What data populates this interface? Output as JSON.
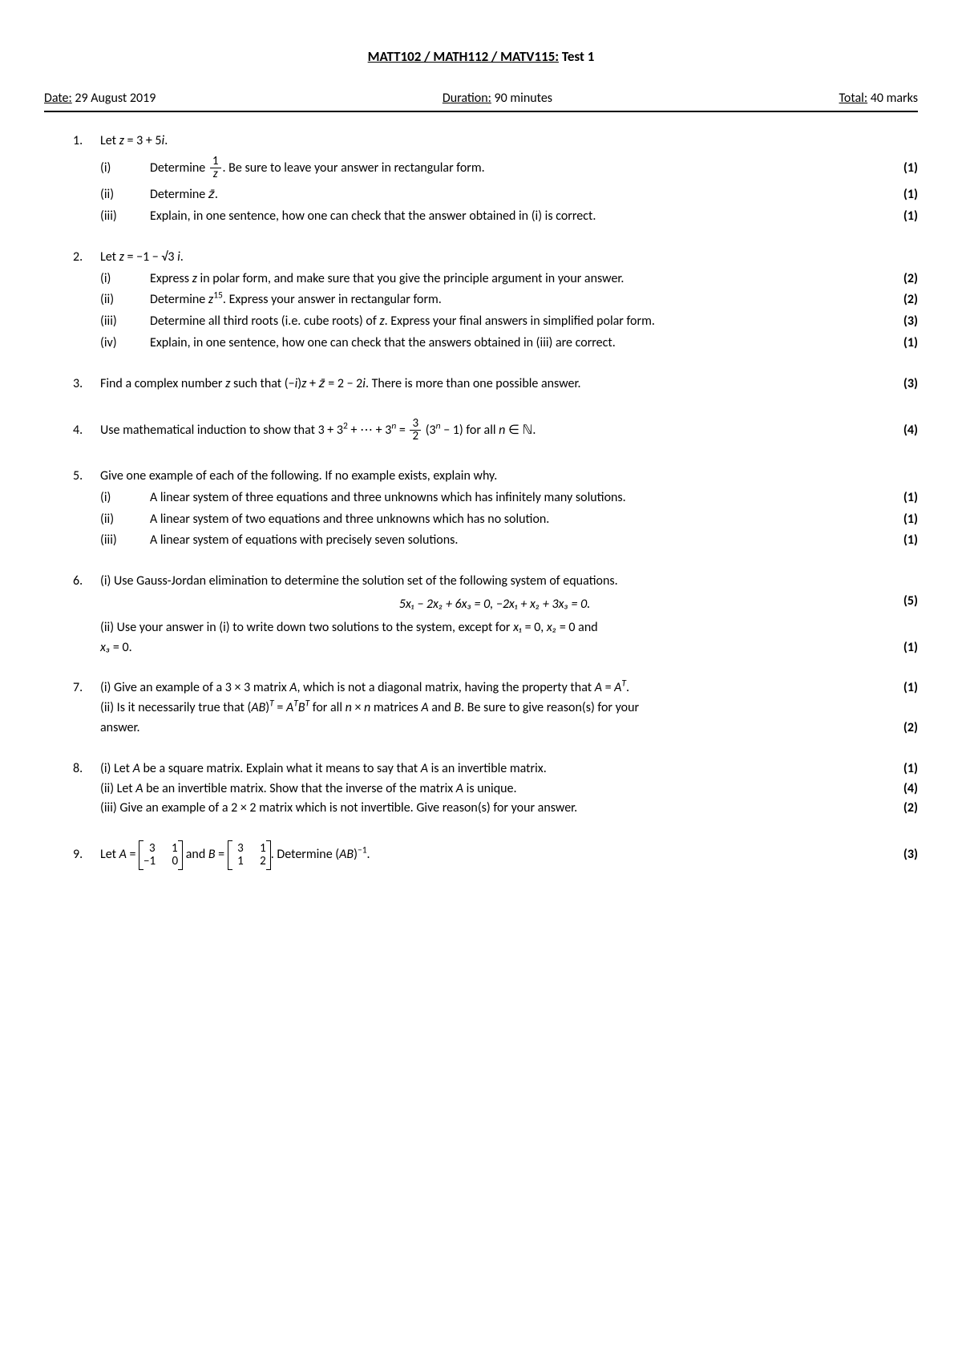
{
  "title_underline": "MATT102 / MATH112 / MATV115:",
  "title_rest": " Test 1",
  "header": {
    "date_label": "Date:",
    "date_value": " 29 August 2019",
    "duration_label": "Duration:",
    "duration_value": " 90 minutes",
    "total_label": "Total:",
    "total_value": " 40 marks"
  },
  "q1": {
    "num": "1.",
    "stem_a": "Let ",
    "stem_b": " = 3 + 5",
    "stem_c": ".",
    "i_num": "(i)",
    "i_a": "Determine ",
    "i_b": ". Be sure to leave your answer in rectangular form.",
    "i_marks": "(1)",
    "ii_num": "(ii)",
    "ii_a": "Determine ",
    "ii_b": ".",
    "ii_marks": "(1)",
    "iii_num": "(iii)",
    "iii_txt": "Explain, in one sentence, how one can check that the answer obtained in (i) is correct.",
    "iii_marks": "(1)"
  },
  "q2": {
    "num": "2.",
    "stem_a": "Let ",
    "stem_b": " = −1 − √3 ",
    "stem_c": ".",
    "i_num": "(i)",
    "i_a": "Express ",
    "i_b": " in polar form, and make sure that you give the principle argument in your answer.",
    "i_marks": "(2)",
    "ii_num": "(ii)",
    "ii_a": "Determine ",
    "ii_b": ". Express your answer in rectangular form.",
    "ii_marks": "(2)",
    "iii_num": "(iii)",
    "iii_a": "Determine all third roots (i.e. cube roots) of ",
    "iii_b": ". Express your final answers in simplified polar form.",
    "iii_marks": "(3)",
    "iv_num": "(iv)",
    "iv_txt": "Explain, in one sentence, how one can check that the answers obtained in (iii) are correct.",
    "iv_marks": "(1)"
  },
  "q3": {
    "num": "3.",
    "a": "Find a complex number ",
    "b": " such that (−",
    "c": ")",
    "d": " + ",
    "e": " = 2 − 2",
    "f": ". There is more than one possible answer.",
    "marks": "(3)"
  },
  "q4": {
    "num": "4.",
    "a": "Use mathematical induction to show that 3 + 3",
    "b": " + ⋯ + 3",
    "c": " = ",
    "d": " (3",
    "e": " − 1) for all ",
    "f": " ∈ ℕ.",
    "marks": "(4)"
  },
  "q5": {
    "num": "5.",
    "stem": "Give one example of each of the following. If no example exists, explain why.",
    "i_num": "(i)",
    "i_txt": "A linear system of three equations and three unknowns which has infinitely many solutions.",
    "i_marks": "(1)",
    "ii_num": "(ii)",
    "ii_txt": "A linear system of two equations and three unknowns which has no solution.",
    "ii_marks": "(1)",
    "iii_num": "(iii)",
    "iii_txt": "A linear system of equations with precisely seven solutions.",
    "iii_marks": "(1)"
  },
  "q6": {
    "num": "6.",
    "i_txt": "(i) Use Gauss-Jordan elimination to determine the solution set of the following system of equations.",
    "eq": "5x₁ − 2x₂ + 6x₃ = 0, −2x₁ + x₂ + 3x₃ = 0.",
    "i_marks": "(5)",
    "ii_a": "(ii) Use your answer in (i) to write down two solutions to the system, except for ",
    "ii_b": " = 0, ",
    "ii_c": " = 0 and",
    "ii_d": " = 0.",
    "ii_marks": "(1)"
  },
  "q7": {
    "num": "7.",
    "i_a": "(i) Give an example of a 3 × 3 matrix ",
    "i_b": ", which is not a diagonal matrix, having the property that ",
    "i_c": " = ",
    "i_d": ".",
    "i_marks": "(1)",
    "ii_a": "(ii) Is it necessarily true that (",
    "ii_b": ")",
    "ii_c": " = ",
    "ii_d": " for all ",
    "ii_e": " × ",
    "ii_f": " matrices ",
    "ii_g": " and ",
    "ii_h": ". Be sure to give reason(s) for your",
    "ii_i": "answer.",
    "ii_marks": "(2)"
  },
  "q8": {
    "num": "8.",
    "i_a": "(i) Let ",
    "i_b": " be a square matrix. Explain what it means to say that ",
    "i_c": " is an invertible matrix.",
    "i_marks": "(1)",
    "ii_a": "(ii) Let ",
    "ii_b": " be an invertible matrix. Show that the inverse of the matrix ",
    "ii_c": " is unique.",
    "ii_marks": "(4)",
    "iii_txt": "(iii) Give an example of a 2 × 2 matrix which is not invertible. Give reason(s) for your answer.",
    "iii_marks": "(2)"
  },
  "q9": {
    "num": "9.",
    "a": "Let ",
    "b": " = ",
    "c": " and ",
    "d": " = ",
    "e": ". Determine (",
    "f": ")",
    "g": ".",
    "marks": "(3)",
    "A": {
      "r1c1": "3",
      "r1c2": "1",
      "r2c1": "−1",
      "r2c2": "0"
    },
    "B": {
      "r1c1": "3",
      "r1c2": "1",
      "r2c1": "1",
      "r2c2": "2"
    }
  },
  "sym": {
    "z": "z",
    "i": "i",
    "zbar": "z̄",
    "n": "n",
    "x1": "x₁",
    "x2": "x₂",
    "x3": "x₃",
    "A": "A",
    "B": "B",
    "AB": "AB",
    "AT": "Aᵀ",
    "BT": "Bᵀ",
    "one": "1",
    "three": "3",
    "two": "2",
    "fifteen": "15",
    "sup2": "2",
    "supn": "n",
    "supT": "T",
    "supm1": "−1"
  }
}
